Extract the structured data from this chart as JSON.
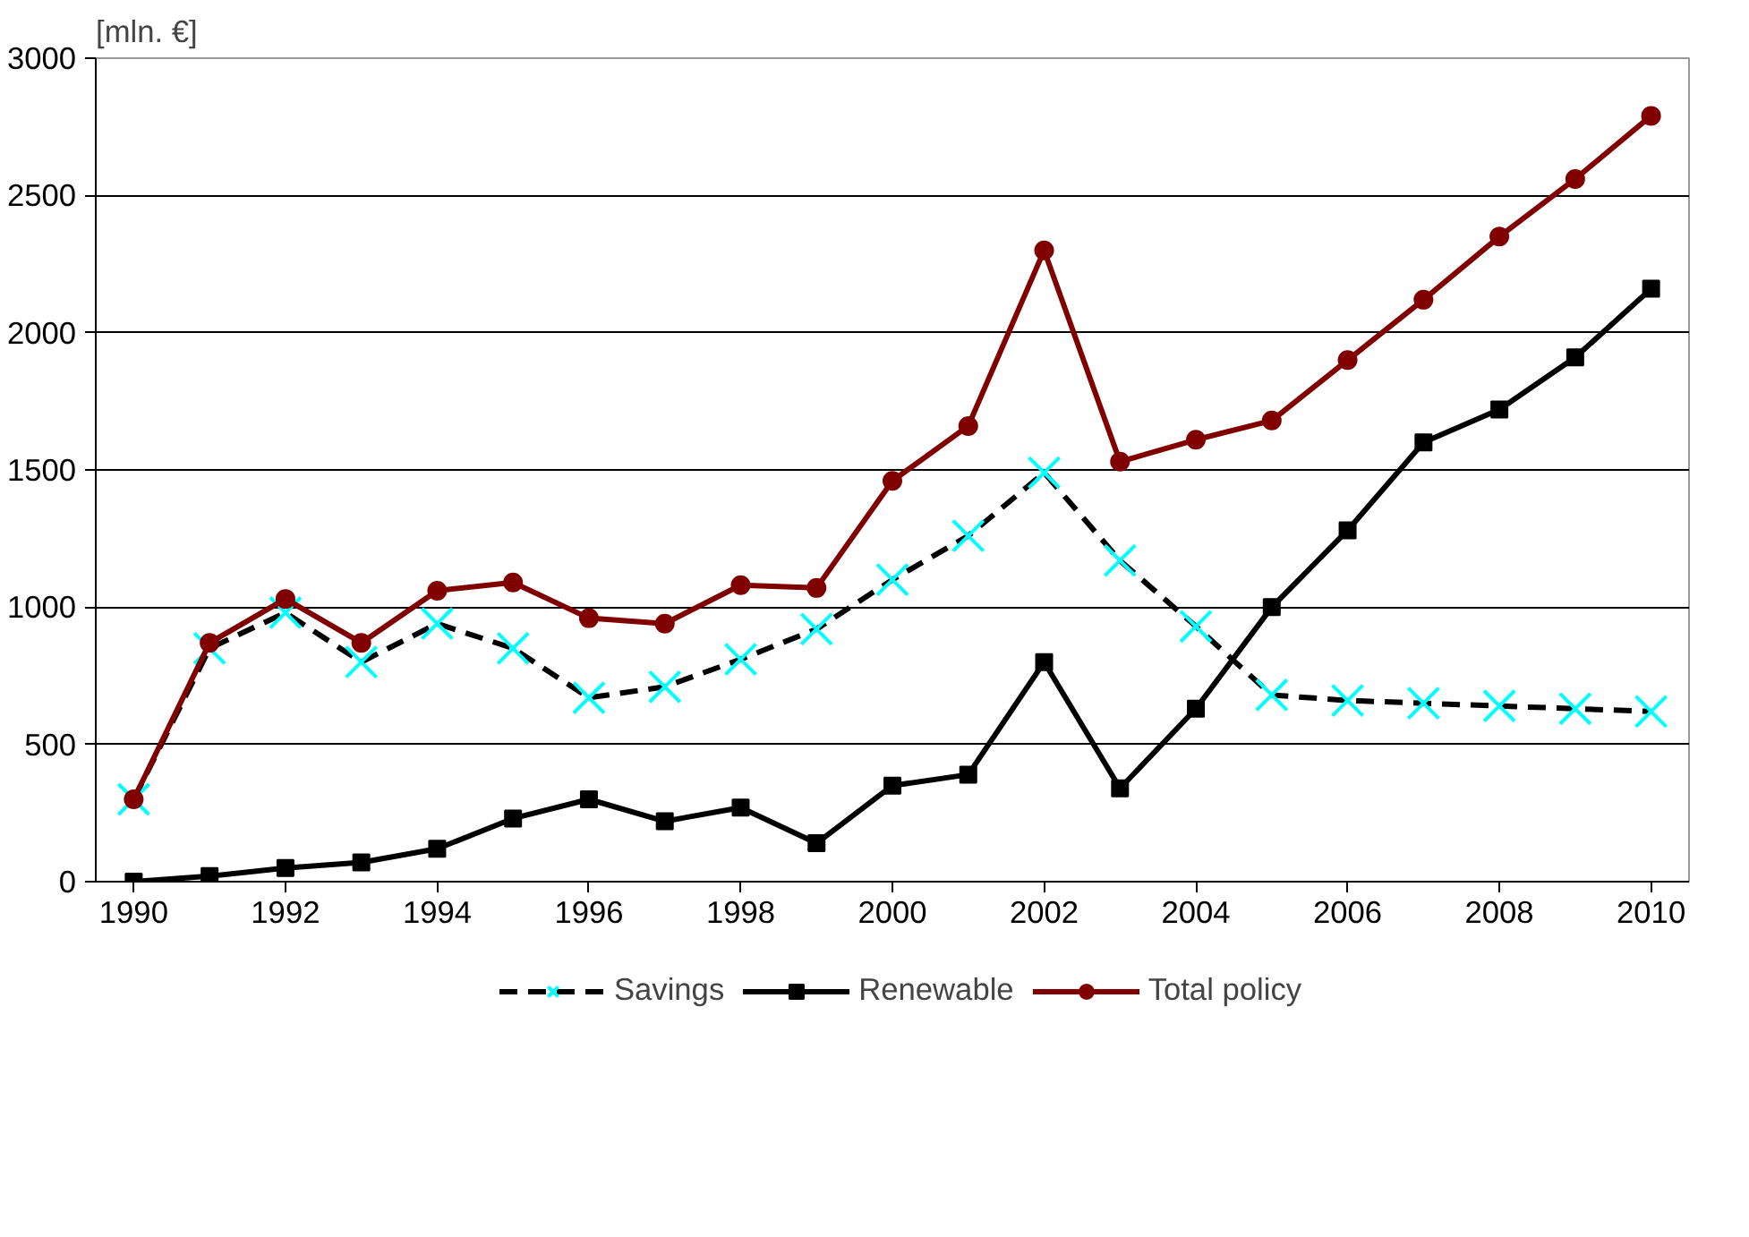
{
  "chart_data": {
    "type": "line",
    "ylabel": "[mln. €]",
    "x": [
      1990,
      1991,
      1992,
      1993,
      1994,
      1995,
      1996,
      1997,
      1998,
      1999,
      2000,
      2001,
      2002,
      2003,
      2004,
      2005,
      2006,
      2007,
      2008,
      2009,
      2010
    ],
    "series": [
      {
        "name": "Savings",
        "color": "#000000",
        "marker": "cross",
        "colors": [
          "#00ffff",
          "#00ffff",
          "#00ffff",
          "#00ffff",
          "#00ffff",
          "#00ffff",
          "#00ffff",
          "#00ffff",
          "#00ffff",
          "#00ffff",
          "#00ffff",
          "#00ffff",
          "#00ffff",
          "#00ffff",
          "#00ffff",
          "#00ffff",
          "#00ffff",
          "#00ffff",
          "#00ffff",
          "#00ffff",
          "#00ffff"
        ],
        "line_style": "dashed",
        "values": [
          300,
          850,
          980,
          800,
          940,
          850,
          670,
          710,
          810,
          920,
          1100,
          1260,
          1490,
          1170,
          930,
          680,
          660,
          650,
          640,
          630,
          620
        ]
      },
      {
        "name": "Renewable",
        "color": "#000000",
        "marker": "square",
        "line_style": "solid",
        "values": [
          0,
          20,
          50,
          70,
          120,
          230,
          300,
          220,
          270,
          140,
          350,
          390,
          800,
          340,
          630,
          1000,
          1280,
          1600,
          1720,
          1910,
          2160
        ]
      },
      {
        "name": "Total policy",
        "color": "#800000",
        "marker": "circle",
        "line_style": "solid",
        "values": [
          300,
          870,
          1030,
          870,
          1060,
          1090,
          960,
          940,
          1080,
          1070,
          1460,
          1660,
          2300,
          1530,
          1610,
          1680,
          1900,
          2120,
          2350,
          2560,
          2790
        ]
      }
    ],
    "xlim": [
      1989.5,
      2010.5
    ],
    "xticks": [
      1990,
      1992,
      1994,
      1996,
      1998,
      2000,
      2002,
      2004,
      2006,
      2008,
      2010
    ],
    "ylim": [
      0,
      3000
    ],
    "yticks": [
      0,
      500,
      1000,
      1500,
      2000,
      2500,
      3000
    ],
    "grid": "y",
    "legend": "bottom"
  }
}
